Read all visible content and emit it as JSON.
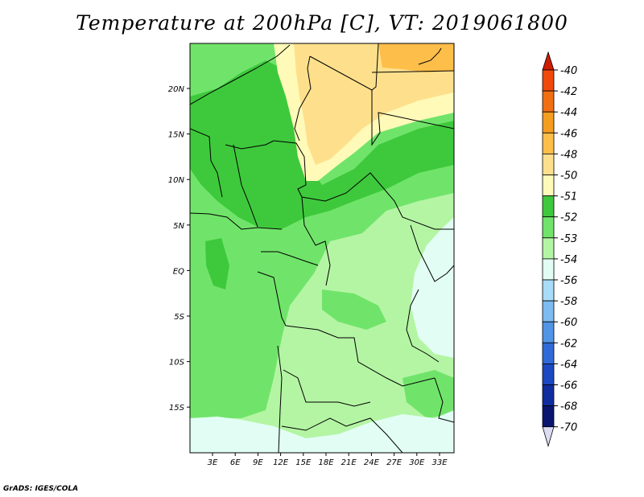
{
  "title": "Temperature at 200hPa [C], VT: 2019061800",
  "footer": "GrADS: IGES/COLA",
  "lat_labels": [
    "20N",
    "15N",
    "10N",
    "5N",
    "EQ",
    "5S",
    "10S",
    "15S"
  ],
  "lon_labels": [
    "3E",
    "6E",
    "9E",
    "12E",
    "15E",
    "18E",
    "21E",
    "24E",
    "27E",
    "30E",
    "33E"
  ],
  "legend": {
    "levels": [
      "-40",
      "-42",
      "-44",
      "-46",
      "-48",
      "-50",
      "-51",
      "-52",
      "-53",
      "-54",
      "-56",
      "-58",
      "-60",
      "-62",
      "-64",
      "-66",
      "-68",
      "-70"
    ],
    "colors": [
      "#d01c00",
      "#f04a0a",
      "#f26e12",
      "#f59d20",
      "#fdbe4a",
      "#fee08c",
      "#fffab8",
      "#3ec93c",
      "#70e46a",
      "#b4f5a4",
      "#e2fef4",
      "#a8dcf8",
      "#7cbcf0",
      "#5094e6",
      "#2f6ad8",
      "#1c48c2",
      "#102d9e",
      "#0a1570"
    ],
    "top_arrow_color": "#d01c00",
    "bottom_arrow_color": "#dcdcf4"
  },
  "palette": {
    "c_52": "#3ec93c",
    "c_53": "#70e46a",
    "c_54": "#b4f5a4",
    "c_56": "#e2fef4",
    "c_51": "#fffab8",
    "c_50": "#fee08c",
    "c_48": "#fdbe4a"
  }
}
